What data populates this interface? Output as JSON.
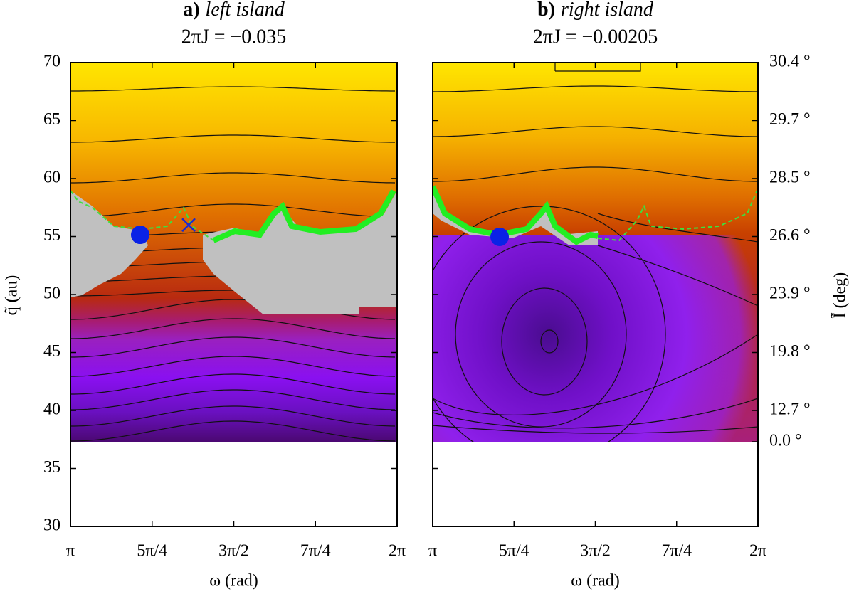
{
  "chart_data": [
    {
      "type": "heatmap",
      "label": "a)",
      "title": "left island",
      "subtitle": "2πJ = −0.035",
      "xlabel": "ω (rad)",
      "ylabel": "q̃ (au)",
      "xlim": [
        3.14159,
        6.28319
      ],
      "xticks": [
        {
          "value": 3.14159,
          "label": "π"
        },
        {
          "value": 3.92699,
          "label": "5π/4"
        },
        {
          "value": 4.71239,
          "label": "3π/2"
        },
        {
          "value": 5.49779,
          "label": "7π/4"
        },
        {
          "value": 6.28319,
          "label": "2π"
        }
      ],
      "ylim": [
        30,
        70
      ],
      "yticks": [
        30,
        35,
        40,
        45,
        50,
        55,
        60,
        65,
        70
      ],
      "show_ytick_labels": true,
      "points": [
        {
          "x": 3.812,
          "y": 55.15,
          "marker": "circle",
          "color": "#0a22e6"
        },
        {
          "x": 4.278,
          "y": 56.0,
          "marker": "x",
          "color": "#1a2ad0"
        }
      ]
    },
    {
      "type": "heatmap",
      "label": "b)",
      "title": "right island",
      "subtitle": "2πJ = −0.00205",
      "xlabel": "ω (rad)",
      "y2label": "Ĩ (deg)",
      "xlim": [
        3.14159,
        6.28319
      ],
      "xticks": [
        {
          "value": 3.14159,
          "label": "π"
        },
        {
          "value": 3.92699,
          "label": "5π/4"
        },
        {
          "value": 4.71239,
          "label": "3π/2"
        },
        {
          "value": 5.49779,
          "label": "7π/4"
        },
        {
          "value": 6.28319,
          "label": "2π"
        }
      ],
      "ylim": [
        30,
        70
      ],
      "yticks": [
        30,
        35,
        40,
        45,
        50,
        55,
        60,
        65,
        70
      ],
      "show_ytick_labels": false,
      "y2ticks": [
        {
          "value": 30.4,
          "label": "30.4 °",
          "at_y": 70
        },
        {
          "value": 29.7,
          "label": "29.7 °",
          "at_y": 65
        },
        {
          "value": 28.5,
          "label": "28.5 °",
          "at_y": 60
        },
        {
          "value": 26.6,
          "label": "26.6 °",
          "at_y": 55
        },
        {
          "value": 23.9,
          "label": "23.9 °",
          "at_y": 50
        },
        {
          "value": 19.8,
          "label": "19.8 °",
          "at_y": 45
        },
        {
          "value": 12.7,
          "label": "12.7 °",
          "at_y": 40
        },
        {
          "value": 0.0,
          "label": "0.0 °",
          "at_y": 37.3
        }
      ],
      "points": [
        {
          "x": 3.788,
          "y": 54.97,
          "marker": "circle",
          "color": "#0a22e6"
        }
      ]
    }
  ]
}
